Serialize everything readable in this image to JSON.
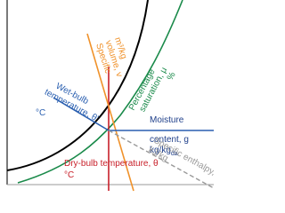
{
  "labels": {
    "dry_bulb": [
      "Dry-bulb temperature, θ",
      "°C"
    ],
    "wet_bulb": [
      "Wet-bulb",
      "temperature, θ'",
      "°C"
    ],
    "specific_volume": [
      "Specific",
      "volume, v",
      "m³/kg"
    ],
    "percentage_saturation": [
      "Percentage",
      "saturation, μ",
      "%"
    ],
    "moisture_content": [
      "Moisture",
      "content, g",
      "kg/kg",
      "da"
    ],
    "specific_enthalpy": [
      "Specific enthalpy, h",
      "kJ/kg"
    ]
  }
}
